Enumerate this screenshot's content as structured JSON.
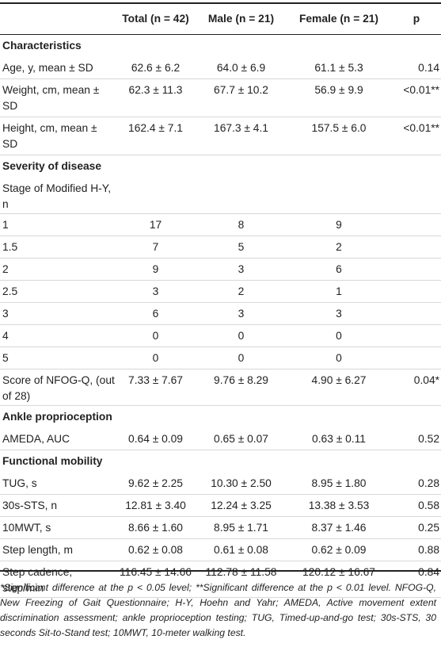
{
  "table": {
    "headers": [
      "",
      "Total (n = 42)",
      "Male (n = 21)",
      "Female (n = 21)",
      "p"
    ],
    "sections": [
      {
        "title": "Characteristics",
        "rows": [
          {
            "label": "Age, y, mean ± SD",
            "total": "62.6 ± 6.2",
            "male": "64.0 ± 6.9",
            "female": "61.1 ± 5.3",
            "p": "0.14"
          },
          {
            "label": "Weight, cm, mean ± SD",
            "total": "62.3 ± 11.3",
            "male": "67.7 ± 10.2",
            "female": "56.9 ± 9.9",
            "p": "<0.01**"
          },
          {
            "label": "Height, cm, mean ± SD",
            "total": "162.4 ± 7.1",
            "male": "167.3 ± 4.1",
            "female": "157.5 ± 6.0",
            "p": "<0.01**"
          }
        ]
      },
      {
        "title": "Severity of disease",
        "rows": [
          {
            "label": "Stage of Modified H-Y, n",
            "total": "",
            "male": "",
            "female": "",
            "p": ""
          },
          {
            "label": "1",
            "total": "17",
            "male": "8",
            "female": "9",
            "p": ""
          },
          {
            "label": "1.5",
            "total": "7",
            "male": "5",
            "female": "2",
            "p": ""
          },
          {
            "label": "2",
            "total": "9",
            "male": "3",
            "female": "6",
            "p": ""
          },
          {
            "label": "2.5",
            "total": "3",
            "male": "2",
            "female": "1",
            "p": ""
          },
          {
            "label": "3",
            "total": "6",
            "male": "3",
            "female": "3",
            "p": ""
          },
          {
            "label": "4",
            "total": "0",
            "male": "0",
            "female": "0",
            "p": ""
          },
          {
            "label": "5",
            "total": "0",
            "male": "0",
            "female": "0",
            "p": ""
          },
          {
            "label": "Score of NFOG-Q, (out of 28)",
            "total": "7.33 ± 7.67",
            "male": "9.76 ± 8.29",
            "female": "4.90 ± 6.27",
            "p": "0.04*"
          }
        ]
      },
      {
        "title": "Ankle proprioception",
        "rows": [
          {
            "label": "AMEDA, AUC",
            "total": "0.64 ± 0.09",
            "male": "0.65 ± 0.07",
            "female": "0.63 ± 0.11",
            "p": "0.52"
          }
        ]
      },
      {
        "title": "Functional mobility",
        "rows": [
          {
            "label": "TUG, s",
            "total": "9.62 ± 2.25",
            "male": "10.30 ± 2.50",
            "female": "8.95 ± 1.80",
            "p": "0.28"
          },
          {
            "label": "30s-STS, n",
            "total": "12.81 ± 3.40",
            "male": "12.24 ± 3.25",
            "female": "13.38 ± 3.53",
            "p": "0.58"
          },
          {
            "label": "10MWT, s",
            "total": "8.66 ± 1.60",
            "male": "8.95 ± 1.71",
            "female": "8.37 ± 1.46",
            "p": "0.25"
          },
          {
            "label": "Step length, m",
            "total": "0.62 ± 0.08",
            "male": "0.61 ± 0.08",
            "female": "0.62 ± 0.09",
            "p": "0.88"
          },
          {
            "label": "Step cadence, step/min",
            "total": "116.45 ± 14.66",
            "male": "112.78 ± 11.58",
            "female": "120.12 ± 16.67",
            "p": "0.84"
          }
        ]
      }
    ]
  },
  "footnote": "*Significant difference at the p < 0.05 level; **Significant difference at the p < 0.01 level. NFOG-Q, New Freezing of Gait Questionnaire; H-Y, Hoehn and Yahr; AMEDA, Active movement extent discrimination assessment; ankle proprioception testing; TUG, Timed-up-and-go test; 30s-STS, 30 seconds Sit-to-Stand test; 10MWT, 10-meter walking test."
}
